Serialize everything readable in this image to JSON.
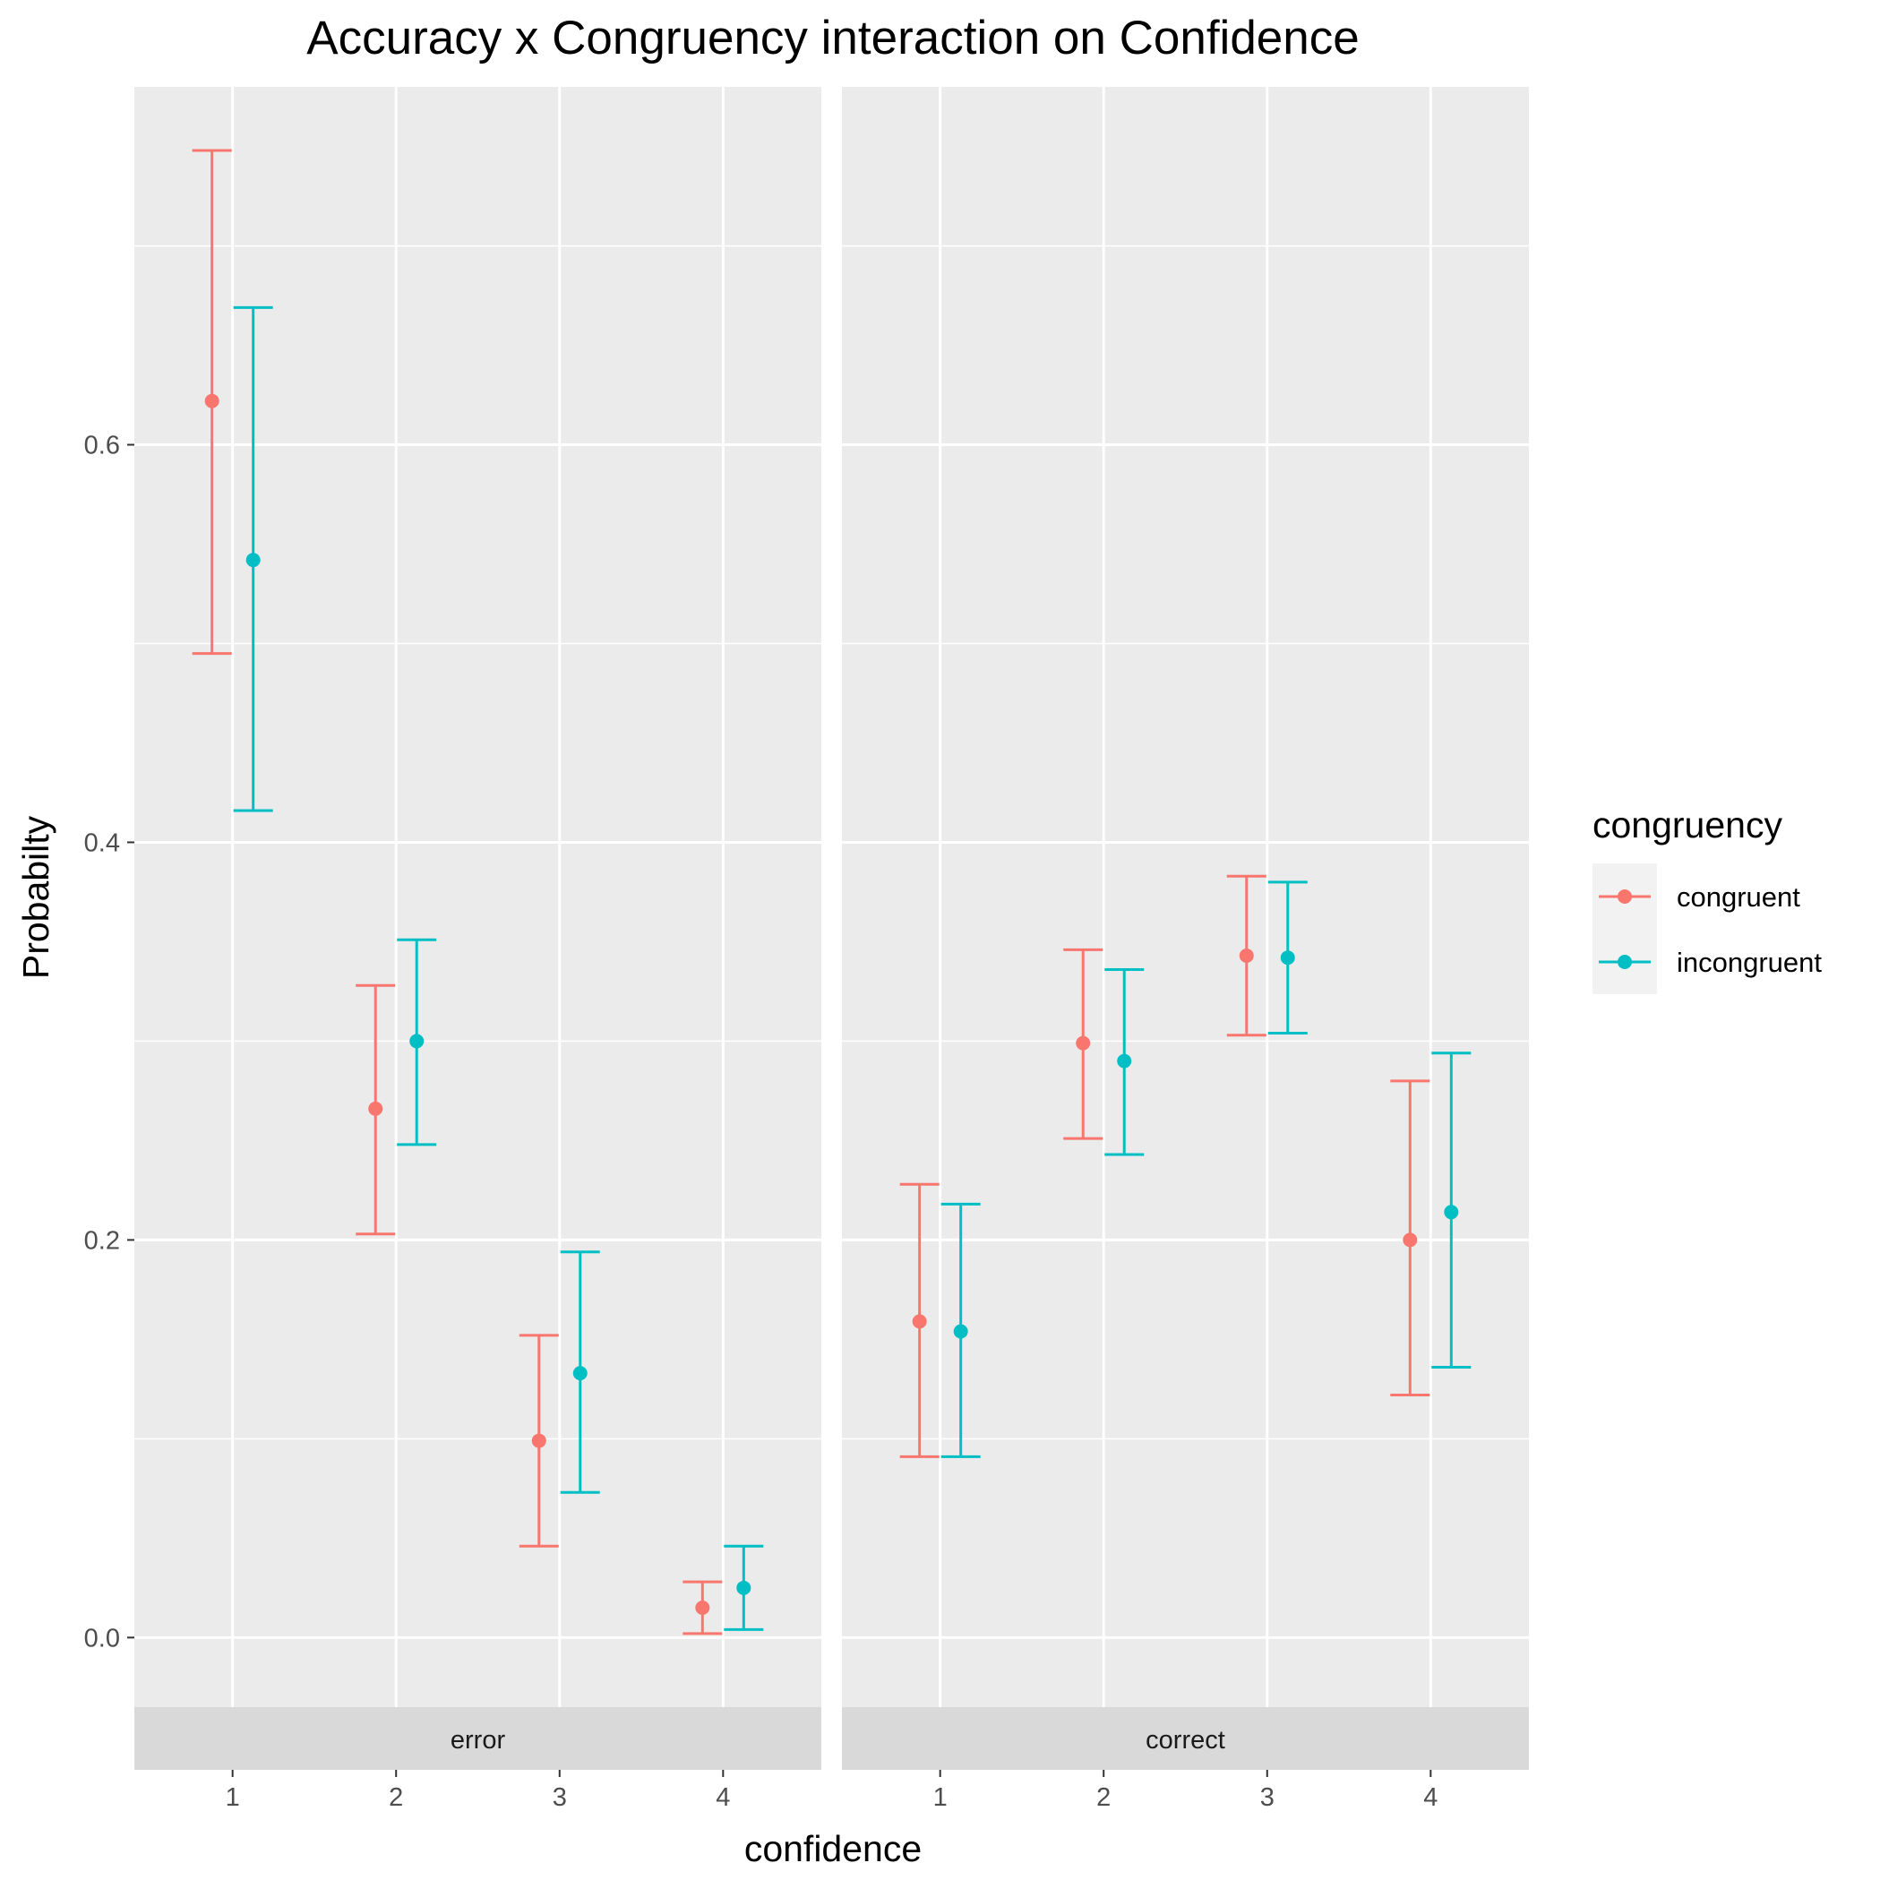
{
  "chart_data": {
    "type": "errorbar",
    "title": "Accuracy x Congruency interaction on Confidence",
    "xlabel": "confidence",
    "ylabel": "Probabilty",
    "categories": [
      "1",
      "2",
      "3",
      "4"
    ],
    "ylim": [
      -0.035,
      0.78
    ],
    "yticks": [
      0.0,
      0.2,
      0.4,
      0.6
    ],
    "ytick_labels": [
      "0.0",
      "0.2",
      "0.4",
      "0.6"
    ],
    "grid": true,
    "legend": {
      "title": "congruency",
      "position": "right",
      "entries": [
        {
          "label": "congruent",
          "color": "#F8766D"
        },
        {
          "label": "incongruent",
          "color": "#00BFC4"
        }
      ]
    },
    "panels": [
      {
        "label": "error",
        "series": [
          {
            "name": "congruent",
            "color": "#F8766D",
            "points": [
              {
                "x": "1",
                "y": 0.622,
                "lower": 0.495,
                "upper": 0.748
              },
              {
                "x": "2",
                "y": 0.266,
                "lower": 0.203,
                "upper": 0.328
              },
              {
                "x": "3",
                "y": 0.099,
                "lower": 0.046,
                "upper": 0.152
              },
              {
                "x": "4",
                "y": 0.015,
                "lower": 0.002,
                "upper": 0.028
              }
            ]
          },
          {
            "name": "incongruent",
            "color": "#00BFC4",
            "points": [
              {
                "x": "1",
                "y": 0.542,
                "lower": 0.416,
                "upper": 0.669
              },
              {
                "x": "2",
                "y": 0.3,
                "lower": 0.248,
                "upper": 0.351
              },
              {
                "x": "3",
                "y": 0.133,
                "lower": 0.073,
                "upper": 0.194
              },
              {
                "x": "4",
                "y": 0.025,
                "lower": 0.004,
                "upper": 0.046
              }
            ]
          }
        ]
      },
      {
        "label": "correct",
        "series": [
          {
            "name": "congruent",
            "color": "#F8766D",
            "points": [
              {
                "x": "1",
                "y": 0.159,
                "lower": 0.091,
                "upper": 0.228
              },
              {
                "x": "2",
                "y": 0.299,
                "lower": 0.251,
                "upper": 0.346
              },
              {
                "x": "3",
                "y": 0.343,
                "lower": 0.303,
                "upper": 0.383
              },
              {
                "x": "4",
                "y": 0.2,
                "lower": 0.122,
                "upper": 0.28
              }
            ]
          },
          {
            "name": "incongruent",
            "color": "#00BFC4",
            "points": [
              {
                "x": "1",
                "y": 0.154,
                "lower": 0.091,
                "upper": 0.218
              },
              {
                "x": "2",
                "y": 0.29,
                "lower": 0.243,
                "upper": 0.336
              },
              {
                "x": "3",
                "y": 0.342,
                "lower": 0.304,
                "upper": 0.38
              },
              {
                "x": "4",
                "y": 0.214,
                "lower": 0.136,
                "upper": 0.294
              }
            ]
          }
        ]
      }
    ]
  }
}
